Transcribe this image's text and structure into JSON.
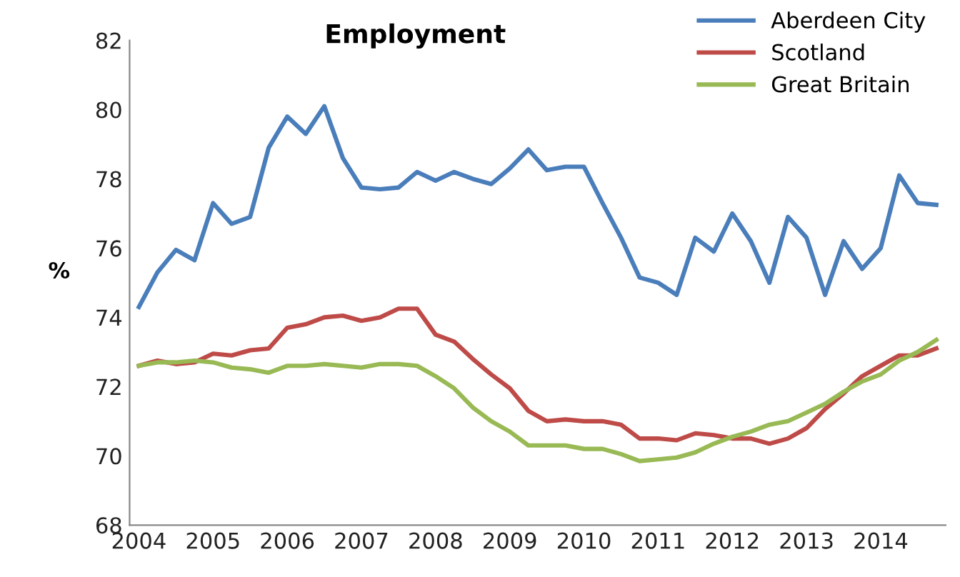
{
  "chart_data": {
    "type": "line",
    "title": "Employment",
    "ylabel": "%",
    "categories": [
      "2004",
      null,
      null,
      null,
      "2005",
      null,
      null,
      null,
      "2006",
      null,
      null,
      null,
      "2007",
      null,
      null,
      null,
      "2008",
      null,
      null,
      null,
      "2009",
      null,
      null,
      null,
      "2010",
      null,
      null,
      null,
      "2011",
      null,
      null,
      null,
      "2012",
      null,
      null,
      null,
      "2013",
      null,
      null,
      null,
      "2014",
      null,
      null,
      null
    ],
    "series": [
      {
        "name": "Aberdeen City",
        "color": "#4a7ebb",
        "values": [
          74.3,
          75.3,
          75.95,
          75.65,
          77.3,
          76.7,
          76.9,
          78.9,
          79.8,
          79.3,
          80.1,
          78.6,
          77.75,
          77.7,
          77.75,
          78.2,
          77.95,
          78.2,
          78.0,
          77.85,
          78.3,
          78.85,
          78.25,
          78.35,
          78.35,
          77.3,
          76.3,
          75.15,
          75.0,
          74.65,
          76.3,
          75.9,
          77.0,
          76.2,
          75.0,
          76.9,
          76.3,
          74.65,
          76.2,
          75.4,
          76.0,
          78.1,
          77.3,
          77.25
        ]
      },
      {
        "name": "Scotland",
        "color": "#be4b48",
        "values": [
          72.6,
          72.75,
          72.65,
          72.7,
          72.95,
          72.9,
          73.05,
          73.1,
          73.7,
          73.8,
          74.0,
          74.05,
          73.9,
          74.0,
          74.25,
          74.25,
          73.5,
          73.3,
          72.8,
          72.35,
          71.95,
          71.3,
          71.0,
          71.05,
          71.0,
          71.0,
          70.9,
          70.5,
          70.5,
          70.45,
          70.65,
          70.6,
          70.5,
          70.5,
          70.35,
          70.5,
          70.8,
          71.35,
          71.8,
          72.3,
          72.6,
          72.9,
          72.9,
          73.1
        ]
      },
      {
        "name": "Great Britain",
        "color": "#98b954",
        "values": [
          72.6,
          72.7,
          72.7,
          72.75,
          72.7,
          72.55,
          72.5,
          72.4,
          72.6,
          72.6,
          72.65,
          72.6,
          72.55,
          72.65,
          72.65,
          72.6,
          72.3,
          71.95,
          71.4,
          71.0,
          70.7,
          70.3,
          70.3,
          70.3,
          70.2,
          70.2,
          70.05,
          69.85,
          69.9,
          69.95,
          70.1,
          70.35,
          70.55,
          70.7,
          70.9,
          71.0,
          71.25,
          71.5,
          71.85,
          72.15,
          72.35,
          72.75,
          73.0,
          73.35
        ]
      }
    ],
    "ylim": [
      68,
      82
    ],
    "yticks": [
      68,
      70,
      72,
      74,
      76,
      78,
      80,
      82
    ],
    "grid": false,
    "legend": "top right",
    "marker": "none",
    "line_style": "solid"
  }
}
